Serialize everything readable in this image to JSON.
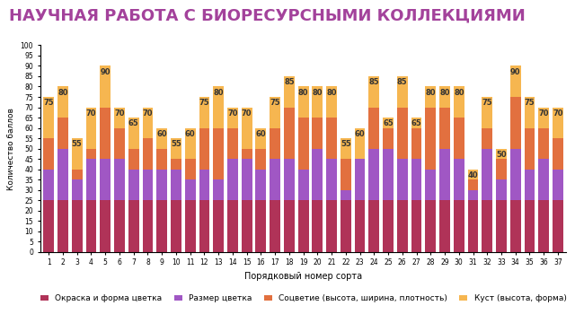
{
  "chart_data": {
    "type": "bar",
    "stacked": true,
    "title": "НАУЧНАЯ РАБОТА С БИОРЕСУРСНЫМИ КОЛЛЕКЦИЯМИ",
    "x_label": "Порядковый номер сорта",
    "y_label": "Количество баллов",
    "categories": [
      "1",
      "2",
      "3",
      "4",
      "5",
      "6",
      "7",
      "8",
      "9",
      "10",
      "11",
      "12",
      "13",
      "14",
      "15",
      "16",
      "17",
      "18",
      "19",
      "20",
      "21",
      "22",
      "23",
      "24",
      "25",
      "26",
      "27",
      "28",
      "29",
      "30",
      "31",
      "32",
      "33",
      "34",
      "35",
      "36",
      "37"
    ],
    "series": [
      {
        "name": "Окраска и форма цветка",
        "color": "#b03358",
        "values": [
          25,
          25,
          25,
          25,
          25,
          25,
          25,
          25,
          25,
          25,
          25,
          25,
          25,
          25,
          25,
          25,
          25,
          25,
          25,
          25,
          25,
          25,
          25,
          25,
          25,
          25,
          25,
          25,
          25,
          25,
          25,
          25,
          25,
          25,
          25,
          25,
          25
        ]
      },
      {
        "name": "Размер цветка",
        "color": "#a057c4",
        "values": [
          15,
          25,
          10,
          20,
          20,
          20,
          15,
          15,
          15,
          15,
          10,
          15,
          10,
          20,
          20,
          15,
          20,
          20,
          15,
          25,
          20,
          5,
          20,
          25,
          25,
          20,
          20,
          15,
          25,
          20,
          5,
          25,
          10,
          25,
          15,
          20,
          15
        ]
      },
      {
        "name": "Соцветие (высота, ширина, плотность)",
        "color": "#e2703f",
        "values": [
          15,
          15,
          5,
          5,
          25,
          15,
          10,
          15,
          10,
          5,
          10,
          20,
          25,
          15,
          5,
          10,
          15,
          25,
          25,
          15,
          20,
          15,
          0,
          20,
          10,
          25,
          15,
          30,
          20,
          20,
          5,
          10,
          10,
          25,
          20,
          15,
          15
        ]
      },
      {
        "name": "Куст (высота, форма)",
        "color": "#f6b650",
        "values": [
          20,
          15,
          15,
          20,
          20,
          10,
          15,
          15,
          10,
          10,
          15,
          15,
          20,
          10,
          20,
          10,
          15,
          15,
          15,
          15,
          15,
          10,
          15,
          15,
          5,
          15,
          5,
          10,
          10,
          15,
          5,
          15,
          5,
          15,
          15,
          10,
          15
        ]
      }
    ],
    "totals": [
      75,
      80,
      55,
      70,
      90,
      70,
      65,
      70,
      60,
      55,
      60,
      75,
      80,
      70,
      70,
      60,
      75,
      85,
      80,
      80,
      80,
      55,
      60,
      85,
      65,
      85,
      65,
      80,
      80,
      80,
      40,
      75,
      50,
      90,
      75,
      70,
      70
    ],
    "data_labels": true,
    "ylim": [
      0,
      100
    ],
    "yticks": [
      0,
      5,
      10,
      15,
      20,
      25,
      30,
      35,
      40,
      45,
      50,
      55,
      60,
      65,
      70,
      75,
      80,
      85,
      90,
      95,
      100
    ],
    "grid": false,
    "legend": "bottom"
  }
}
